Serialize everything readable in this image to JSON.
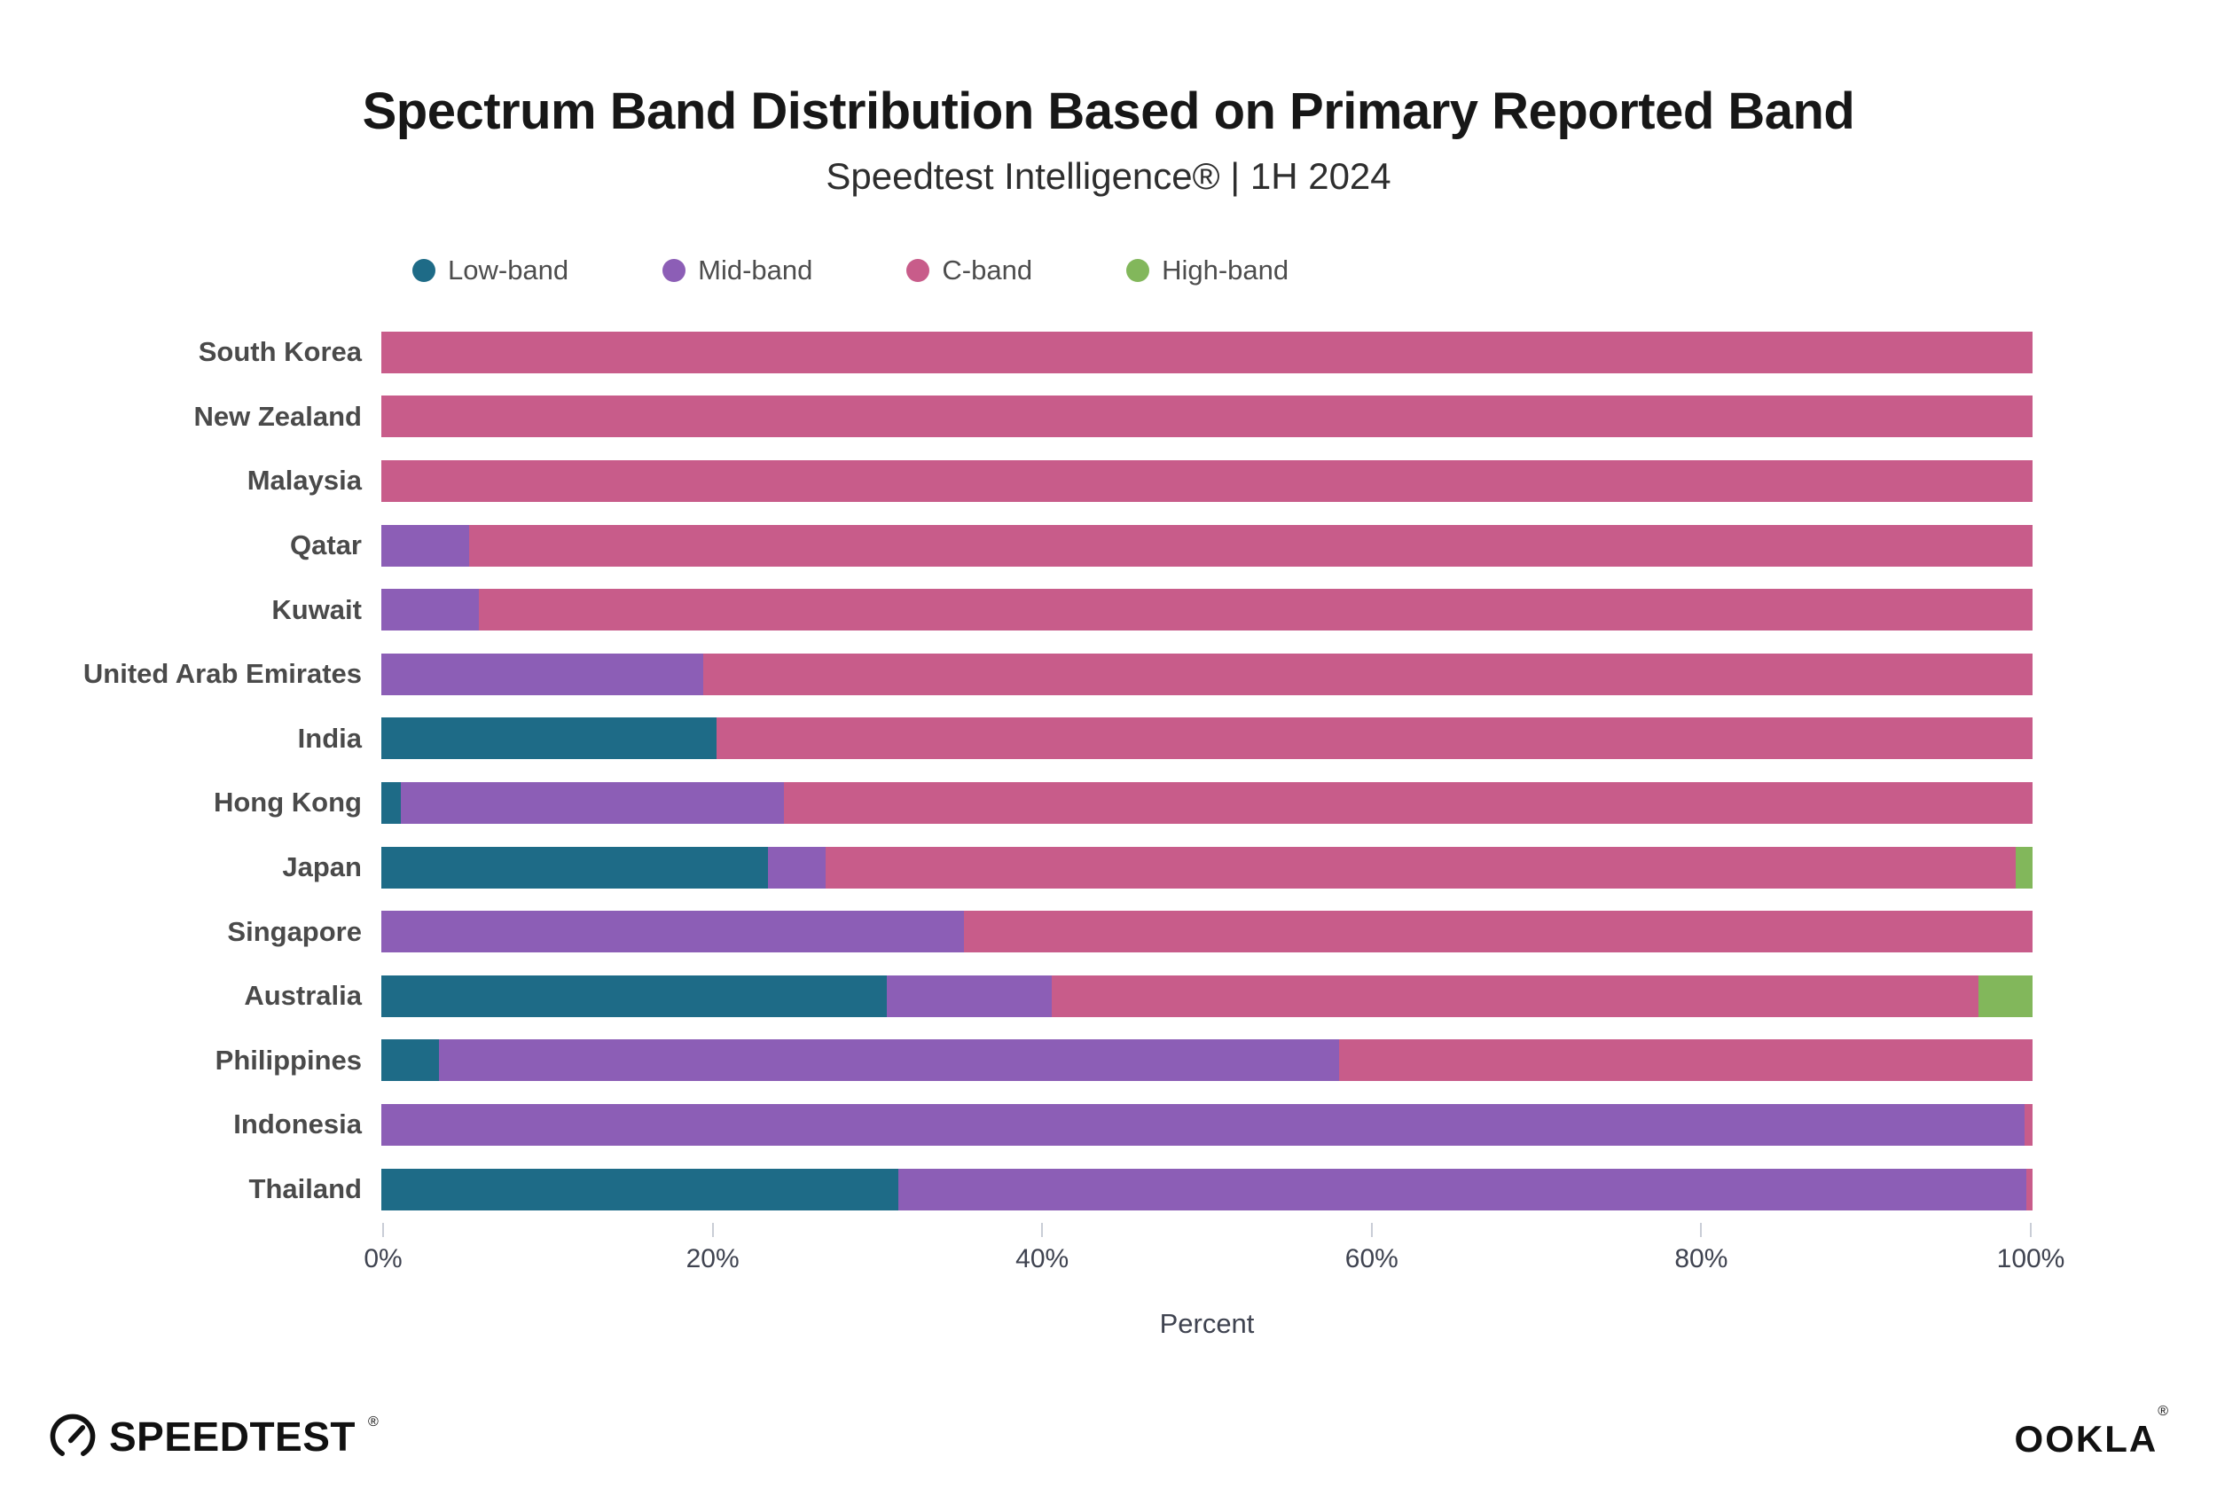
{
  "header": {
    "title": "Spectrum Band Distribution Based on Primary Reported Band",
    "subtitle": "Speedtest Intelligence® | 1H 2024"
  },
  "legend": [
    {
      "label": "Low-band",
      "color": "#1E6B87"
    },
    {
      "label": "Mid-band",
      "color": "#8C5EB6"
    },
    {
      "label": "C-band",
      "color": "#C85C8A"
    },
    {
      "label": "High-band",
      "color": "#82B75B"
    }
  ],
  "chart_data": {
    "type": "bar",
    "stacked": true,
    "orientation": "horizontal",
    "unit": "percent",
    "title": "Spectrum Band Distribution Based on Primary Reported Band",
    "subtitle": "Speedtest Intelligence® | 1H 2024",
    "xlabel": "Percent",
    "xlim": [
      0,
      100
    ],
    "x_tick_labels": [
      "0%",
      "20%",
      "40%",
      "60%",
      "80%",
      "100%"
    ],
    "legend_position": "top-left",
    "grid": false,
    "categories": [
      "South Korea",
      "New Zealand",
      "Malaysia",
      "Qatar",
      "Kuwait",
      "United Arab Emirates",
      "India",
      "Hong Kong",
      "Japan",
      "Singapore",
      "Australia",
      "Philippines",
      "Indonesia",
      "Thailand"
    ],
    "series": [
      {
        "name": "Low-band",
        "color": "#1E6B87",
        "values": [
          0,
          0,
          0,
          0,
          0,
          0,
          20.3,
          1.2,
          23.4,
          0,
          30.6,
          3.5,
          0,
          31.3
        ]
      },
      {
        "name": "Mid-band",
        "color": "#8C5EB6",
        "values": [
          0,
          0,
          0,
          5.3,
          5.9,
          19.5,
          0,
          23.2,
          3.5,
          35.3,
          10.0,
          54.5,
          99.5,
          68.3
        ]
      },
      {
        "name": "C-band",
        "color": "#C85C8A",
        "values": [
          100,
          100,
          100,
          94.7,
          94.1,
          80.5,
          79.7,
          75.6,
          72.1,
          64.7,
          56.1,
          42.0,
          0.5,
          0.4
        ]
      },
      {
        "name": "High-band",
        "color": "#82B75B",
        "values": [
          0,
          0,
          0,
          0,
          0,
          0,
          0,
          0,
          1.0,
          0,
          3.3,
          0,
          0,
          0
        ]
      }
    ]
  },
  "footer": {
    "speedtest_label": "SPEEDTEST",
    "ookla_label": "OOKLA",
    "registered": "®"
  }
}
